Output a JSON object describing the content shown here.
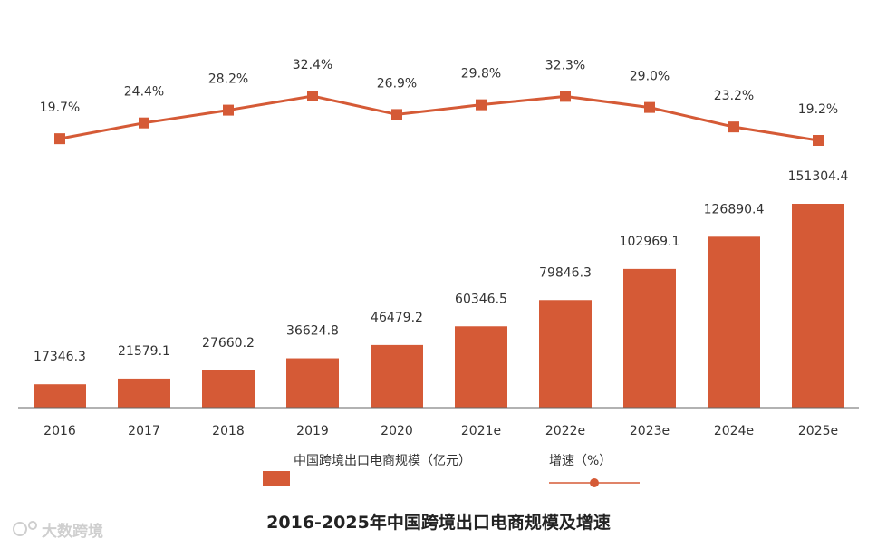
{
  "chart_data": {
    "type": "bar+line",
    "title": "2016-2025年中国跨境出口电商规模及增速",
    "categories": [
      "2016",
      "2017",
      "2018",
      "2019",
      "2020",
      "2021e",
      "2022e",
      "2023e",
      "2024e",
      "2025e"
    ],
    "series": [
      {
        "name": "中国跨境出口电商规模（亿元）",
        "type": "bar",
        "values": [
          17346.3,
          21579.1,
          27660.2,
          36624.8,
          46479.2,
          60346.5,
          79846.3,
          102969.1,
          126890.4,
          151304.4
        ],
        "labels": [
          "17346.3",
          "21579.1",
          "27660.2",
          "36624.8",
          "46479.2",
          "60346.5",
          "79846.3",
          "102969.1",
          "126890.4",
          "151304.4"
        ]
      },
      {
        "name": "增速（%）",
        "type": "line",
        "values": [
          19.7,
          24.4,
          28.2,
          32.4,
          26.9,
          29.8,
          32.3,
          29.0,
          23.2,
          19.2
        ],
        "labels": [
          "19.7%",
          "24.4%",
          "28.2%",
          "32.4%",
          "26.9%",
          "29.8%",
          "32.3%",
          "29.0%",
          "23.2%",
          "19.2%"
        ]
      }
    ],
    "legend_position": "bottom",
    "grid": false,
    "colors": {
      "bar": "#d55a36",
      "line": "#d55a36"
    }
  },
  "watermark": "大数跨境"
}
